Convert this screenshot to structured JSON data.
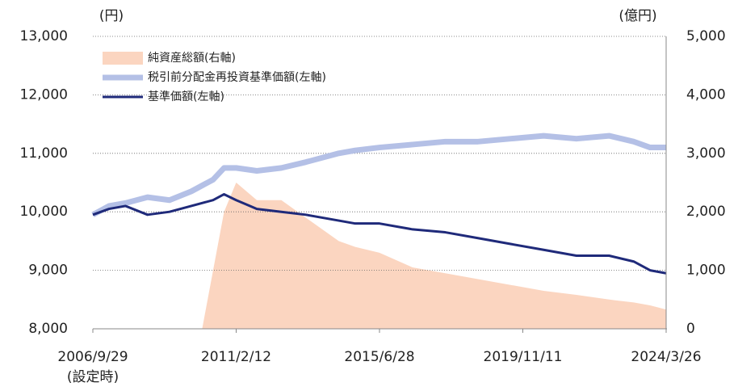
{
  "chart_data": {
    "type": "combo",
    "y_label": "(円)",
    "y2_label": "(億円)",
    "annotations": [
      "(設定時)"
    ],
    "x": [
      "2006/9/29",
      "2007/3/29",
      "2007/9/28",
      "2008/5/30",
      "2009/1/30",
      "2009/9/30",
      "2010/1/29",
      "2010/5/31",
      "2010/9/30",
      "2011/2/12",
      "2011/9/30",
      "2012/6/29",
      "2013/3/29",
      "2014/3/31",
      "2014/9/30",
      "2015/6/28",
      "2016/6/30",
      "2017/6/30",
      "2018/6/29",
      "2019/6/28",
      "2020/6/30",
      "2021/6/30",
      "2022/6/30",
      "2023/3/31",
      "2023/9/29",
      "2024/3/26"
    ],
    "xlim": [
      "2006/9/29",
      "2024/3/26"
    ],
    "xticks": [
      "2006/9/29",
      "2011/2/12",
      "2015/6/28",
      "2019/11/11",
      "2024/3/26"
    ],
    "ylim": [
      8000,
      13000
    ],
    "yticks": [
      {
        "value": 8000,
        "label": "8,000"
      },
      {
        "value": 9000,
        "label": "9,000"
      },
      {
        "value": 10000,
        "label": "10,000"
      },
      {
        "value": 11000,
        "label": "11,000"
      },
      {
        "value": 12000,
        "label": "12,000"
      },
      {
        "value": 13000,
        "label": "13,000"
      }
    ],
    "y2lim": [
      0,
      5000
    ],
    "y2ticks": [
      0,
      {
        "value": 1000,
        "label": "1,000"
      },
      {
        "value": 2000,
        "label": "2,000"
      },
      {
        "value": 3000,
        "label": "3,000"
      },
      {
        "value": 4000,
        "label": "4,000"
      },
      {
        "value": 5000,
        "label": "5,000"
      }
    ],
    "grid": true,
    "legend": "upper left",
    "series": [
      {
        "name": "純資産総額(右軸)",
        "type": "area",
        "axis": "y2",
        "color": "#fbd5c0",
        "values": [
          0,
          0,
          0,
          0,
          0,
          0,
          0,
          1000,
          2000,
          2500,
          2200,
          2200,
          1900,
          1500,
          1400,
          1300,
          1050,
          950,
          850,
          750,
          650,
          580,
          500,
          450,
          400,
          330
        ]
      },
      {
        "name": "税引前分配金再投資基準価額(左軸)",
        "type": "line",
        "color": "#b4c0e6",
        "values": [
          9950,
          10100,
          10150,
          10250,
          10200,
          10350,
          10450,
          10550,
          10750,
          10750,
          10700,
          10750,
          10850,
          11000,
          11050,
          11100,
          11150,
          11200,
          11200,
          11250,
          11300,
          11250,
          11300,
          11200,
          11100,
          11100
        ]
      },
      {
        "name": "基準価額(左軸)",
        "type": "line",
        "color": "#1f2a7a",
        "values": [
          9950,
          10050,
          10100,
          9950,
          10000,
          10100,
          10150,
          10200,
          10300,
          10200,
          10050,
          10000,
          9950,
          9850,
          9800,
          9800,
          9700,
          9650,
          9550,
          9450,
          9350,
          9250,
          9250,
          9150,
          9000,
          8950
        ]
      }
    ]
  }
}
